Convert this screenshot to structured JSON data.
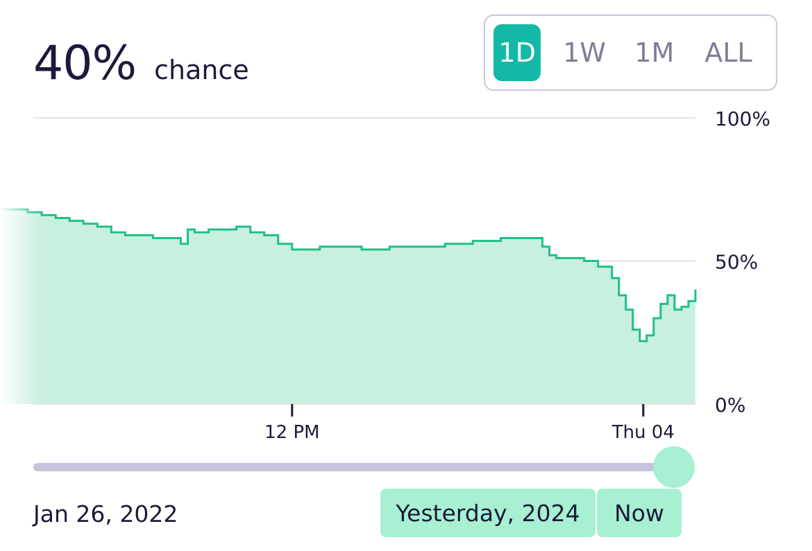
{
  "headline": {
    "value": "40%",
    "label": "chance"
  },
  "range_buttons": [
    {
      "label": "1D",
      "active": true
    },
    {
      "label": "1W",
      "active": false
    },
    {
      "label": "1M",
      "active": false
    },
    {
      "label": "ALL",
      "active": false
    }
  ],
  "chart_data": {
    "type": "area",
    "title": "",
    "xlabel": "",
    "ylabel": "",
    "y_tick_labels": [
      "100%",
      "50%",
      "0%"
    ],
    "ylim": [
      0,
      100
    ],
    "x_tick_labels": [
      {
        "label": "12 PM",
        "t": 0.42
      },
      {
        "label": "Thu 04",
        "t": 0.925
      }
    ],
    "grid": true,
    "line_color": "#1fbf86",
    "fill_color": "#c9f0df",
    "series": [
      {
        "t": [
          0,
          0.02,
          0.04,
          0.06,
          0.08,
          0.1,
          0.12,
          0.14,
          0.16,
          0.18,
          0.2,
          0.22,
          0.24,
          0.26,
          0.27,
          0.28,
          0.3,
          0.32,
          0.33,
          0.34,
          0.36,
          0.38,
          0.4,
          0.42,
          0.44,
          0.46,
          0.48,
          0.5,
          0.52,
          0.54,
          0.56,
          0.58,
          0.6,
          0.62,
          0.64,
          0.66,
          0.68,
          0.7,
          0.72,
          0.74,
          0.76,
          0.78,
          0.79,
          0.8,
          0.82,
          0.84,
          0.86,
          0.88,
          0.89,
          0.9,
          0.91,
          0.92,
          0.93,
          0.94,
          0.95,
          0.96,
          0.97,
          0.98,
          0.99,
          1.0
        ],
        "values": [
          68,
          68,
          67,
          66,
          65,
          64,
          63,
          62,
          60,
          59,
          59,
          58,
          58,
          56,
          61,
          60,
          61,
          61,
          61,
          62,
          60,
          59,
          56,
          54,
          54,
          55,
          55,
          55,
          54,
          54,
          55,
          55,
          55,
          55,
          56,
          56,
          57,
          57,
          58,
          58,
          58,
          55,
          52,
          51,
          51,
          50,
          48,
          44,
          38,
          33,
          26,
          22,
          24,
          30,
          35,
          38,
          33,
          34,
          36,
          40
        ]
      }
    ]
  },
  "slider": {
    "position": 1.0
  },
  "start_date": "Jan 26, 2022",
  "end_label": "Yesterday, 2024",
  "now_label": "Now"
}
